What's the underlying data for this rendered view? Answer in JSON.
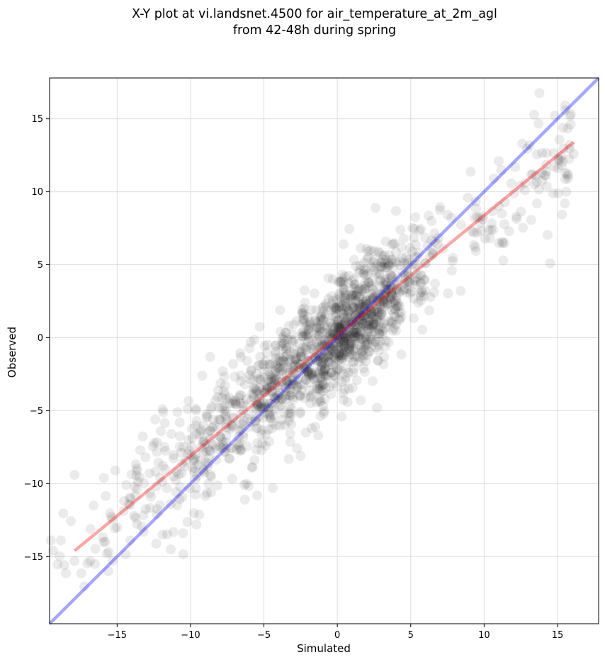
{
  "chart_data": {
    "type": "scatter",
    "title": "X-Y plot at vi.landsnet.4500 for air_temperature_at_2m_agl",
    "subtitle": "from 42-48h during spring",
    "xlabel": "Simulated",
    "ylabel": "Observed",
    "xlim": [
      -19.6,
      17.8
    ],
    "ylim": [
      -19.6,
      17.8
    ],
    "x_ticks": [
      -15,
      -10,
      -5,
      0,
      5,
      10,
      15
    ],
    "y_ticks": [
      -15,
      -10,
      -5,
      0,
      5,
      10,
      15
    ],
    "x_tick_labels": [
      "−15",
      "−10",
      "−5",
      "0",
      "5",
      "10",
      "15"
    ],
    "y_tick_labels": [
      "−15",
      "−10",
      "−5",
      "0",
      "5",
      "10",
      "15"
    ],
    "grid": true,
    "colors": {
      "points": "#000000",
      "one_to_one_line": "#0000ff",
      "regression_line": "#ff0000",
      "grid": "#dddddd"
    },
    "lines": [
      {
        "role": "one-to-one",
        "x": [
          -19.6,
          17.8
        ],
        "y": [
          -19.6,
          17.8
        ]
      },
      {
        "role": "regression",
        "x": [
          -17.9,
          16.1
        ],
        "y": [
          -14.6,
          13.4
        ]
      }
    ],
    "scatter_sample": {
      "note_count": 1500,
      "representative_points": [
        [
          -17.9,
          -15.3
        ],
        [
          -17.9,
          -9.4
        ],
        [
          -16.6,
          -11.5
        ],
        [
          -15.9,
          -9.6
        ],
        [
          -15.6,
          -16.0
        ],
        [
          -15.3,
          -15.3
        ],
        [
          -15.0,
          -13.0
        ],
        [
          -14.2,
          -11.4
        ],
        [
          -13.8,
          -10.2
        ],
        [
          -13.2,
          -13.3
        ],
        [
          -12.7,
          -10.9
        ],
        [
          -12.4,
          -5.6
        ],
        [
          -11.9,
          -4.9
        ],
        [
          -11.9,
          -13.5
        ],
        [
          -11.3,
          -6.6
        ],
        [
          -10.5,
          -13.4
        ],
        [
          -10.2,
          -4.9
        ],
        [
          -9.8,
          -8.4
        ],
        [
          -9.6,
          -12.8
        ],
        [
          -9.2,
          -2.6
        ],
        [
          -8.6,
          -10.6
        ],
        [
          -8.3,
          -4.3
        ],
        [
          -7.7,
          -7.8
        ],
        [
          -7.1,
          -1.8
        ],
        [
          -6.7,
          -4.1
        ],
        [
          -6.3,
          -11.1
        ],
        [
          -6.2,
          -10.0
        ],
        [
          -5.9,
          -0.3
        ],
        [
          -5.4,
          -4.7
        ],
        [
          -4.9,
          -7.4
        ],
        [
          -4.4,
          -10.3
        ],
        [
          -3.9,
          1.9
        ],
        [
          -3.3,
          -5.7
        ],
        [
          -2.9,
          -1.5
        ],
        [
          -2.5,
          -8.1
        ],
        [
          -2.2,
          2.4
        ],
        [
          -1.7,
          -2.5
        ],
        [
          -1.3,
          -6.7
        ],
        [
          -0.9,
          0.8
        ],
        [
          -0.6,
          -1.3
        ],
        [
          -0.3,
          4.0
        ],
        [
          0.0,
          0.0
        ],
        [
          0.3,
          -5.4
        ],
        [
          0.6,
          2.1
        ],
        [
          0.9,
          -0.4
        ],
        [
          1.2,
          3.4
        ],
        [
          1.5,
          1.2
        ],
        [
          1.8,
          -2.1
        ],
        [
          2.1,
          5.5
        ],
        [
          2.4,
          2.6
        ],
        [
          2.6,
          8.9
        ],
        [
          2.7,
          -4.8
        ],
        [
          3.0,
          1.7
        ],
        [
          3.3,
          6.6
        ],
        [
          3.6,
          4.3
        ],
        [
          4.0,
          0.9
        ],
        [
          4.3,
          7.4
        ],
        [
          4.7,
          3.1
        ],
        [
          5.1,
          5.9
        ],
        [
          5.5,
          2.4
        ],
        [
          6.0,
          5.1
        ],
        [
          6.6,
          3.1
        ],
        [
          7.2,
          6.1
        ],
        [
          7.8,
          4.6
        ],
        [
          8.4,
          3.2
        ],
        [
          8.9,
          9.6
        ],
        [
          9.4,
          6.2
        ],
        [
          9.9,
          8.1
        ],
        [
          10.4,
          6.8
        ],
        [
          11.0,
          12.1
        ],
        [
          11.3,
          5.3
        ],
        [
          11.7,
          7.3
        ],
        [
          12.2,
          8.3
        ],
        [
          12.6,
          13.3
        ],
        [
          12.8,
          10.6
        ],
        [
          13.3,
          11.2
        ],
        [
          13.6,
          9.2
        ],
        [
          14.2,
          11.1
        ],
        [
          14.5,
          5.1
        ],
        [
          14.8,
          11.7
        ],
        [
          15.5,
          9.2
        ],
        [
          15.6,
          10.0
        ],
        [
          15.7,
          11.1
        ],
        [
          16.1,
          12.6
        ]
      ]
    }
  }
}
